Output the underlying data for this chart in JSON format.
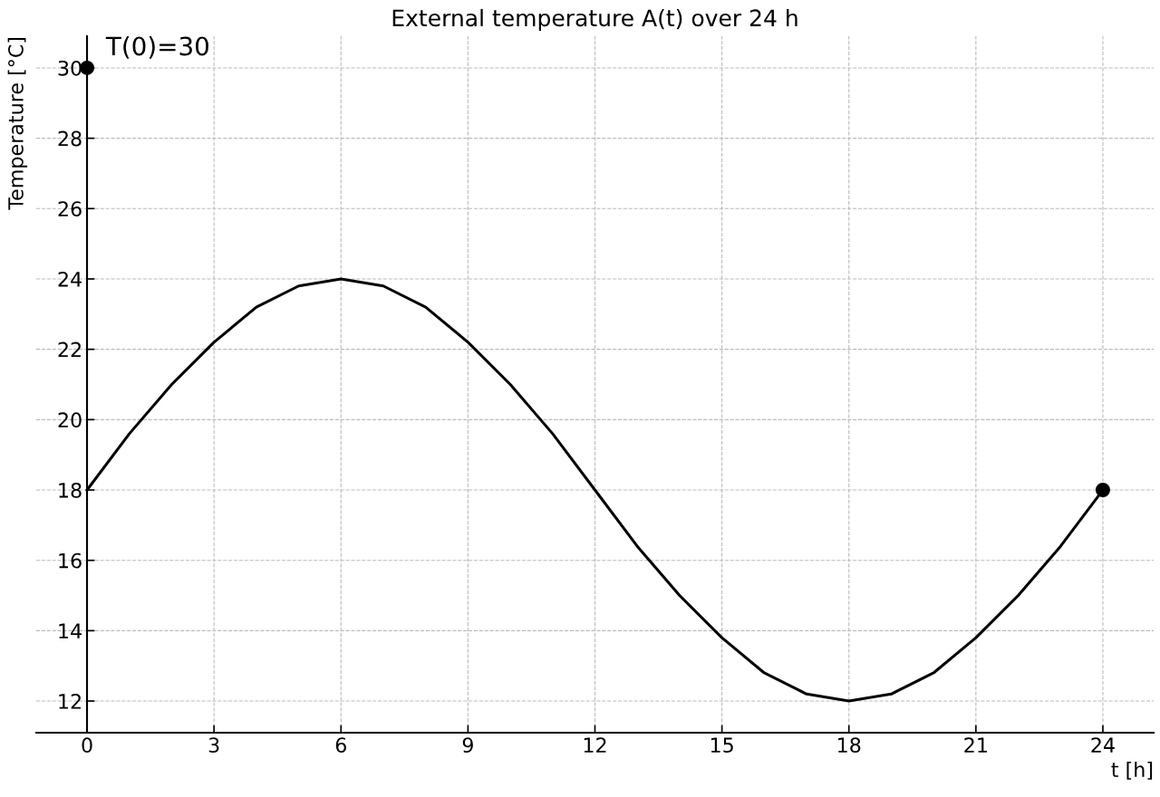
{
  "chart_data": {
    "type": "line",
    "title": "External temperature A(t) over 24 h",
    "xlabel": "t [h]",
    "ylabel": "Temperature [°C]",
    "series": [
      {
        "color": "#000000",
        "x": [
          0,
          1,
          2,
          3,
          4,
          5,
          6,
          7,
          8,
          9,
          10,
          11,
          12,
          13,
          14,
          15,
          16,
          17,
          18,
          19,
          20,
          21,
          22,
          23,
          24
        ],
        "values": [
          18,
          19.6,
          21,
          22.2,
          23.2,
          23.8,
          24,
          23.8,
          23.2,
          22.2,
          21,
          19.6,
          18,
          16.4,
          15,
          13.8,
          12.8,
          12.2,
          12,
          12.2,
          12.8,
          13.8,
          15,
          16.4,
          18
        ]
      },
      {
        "type": "scatter",
        "color": "#000000",
        "x": [
          0,
          24
        ],
        "values": [
          30,
          18
        ]
      }
    ],
    "annotations": [
      {
        "text": "T(0)=30",
        "x": 0,
        "y": 30
      }
    ],
    "xlim": [
      -1.2,
      25.2
    ],
    "ylim": [
      11.1,
      30.9
    ],
    "xticks": [
      0,
      3,
      6,
      9,
      12,
      15,
      18,
      21,
      24
    ],
    "yticks": [
      12,
      14,
      16,
      18,
      20,
      22,
      24,
      26,
      28,
      30
    ],
    "grid": true,
    "line_style": "solid"
  }
}
